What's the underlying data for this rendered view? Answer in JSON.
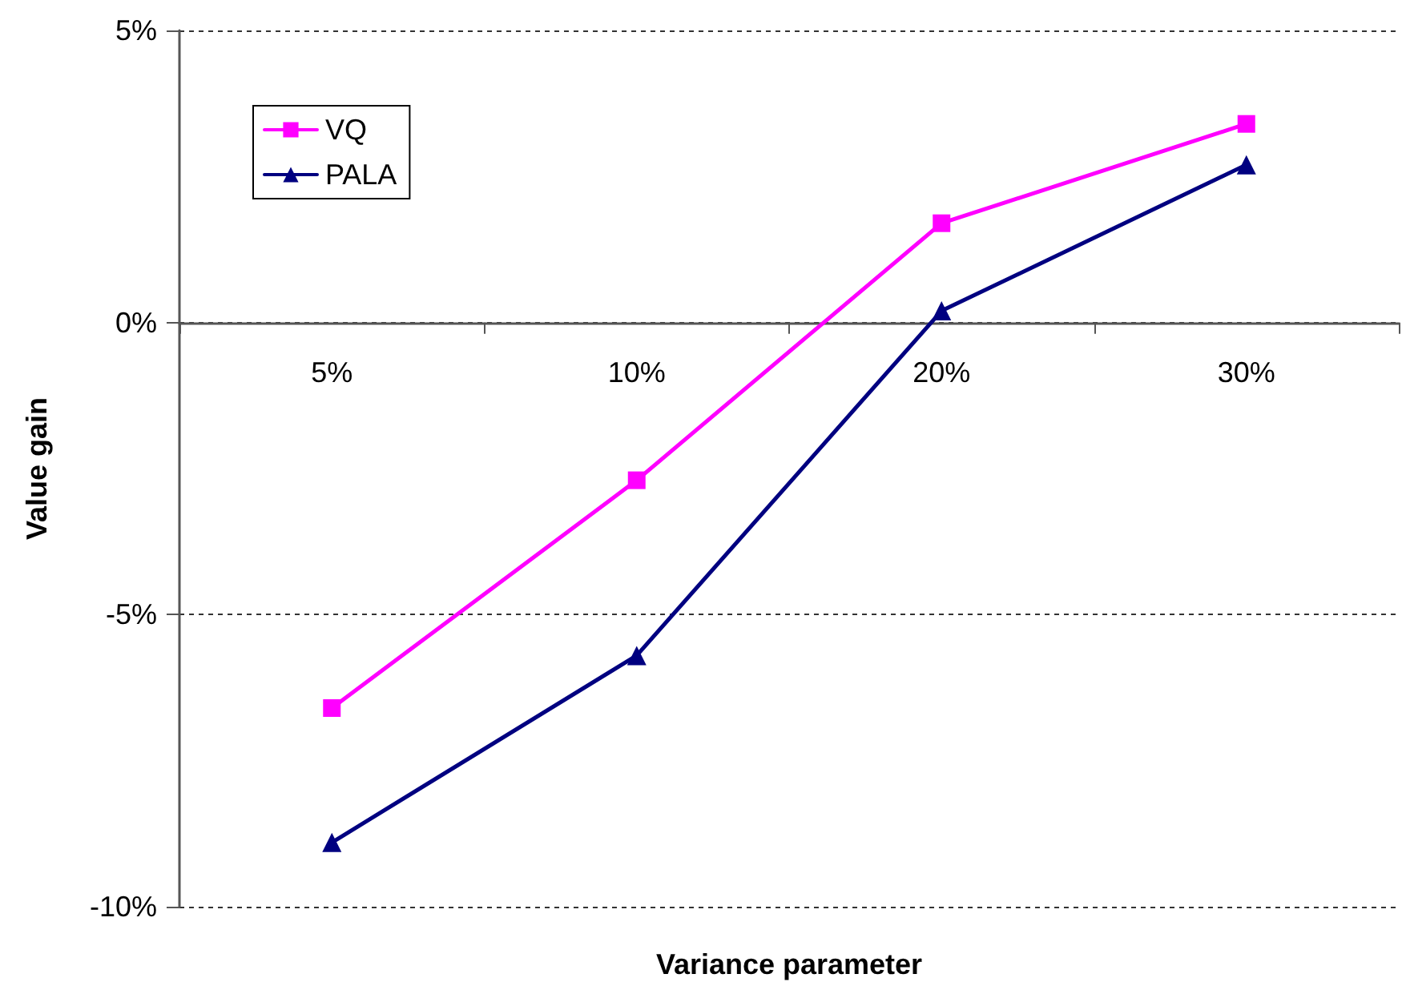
{
  "chart_data": {
    "type": "line",
    "xlabel": "Variance parameter",
    "ylabel": "Value gain",
    "categories": [
      "5%",
      "10%",
      "20%",
      "30%"
    ],
    "series": [
      {
        "name": "VQ",
        "color": "#ff00ff",
        "marker": "square",
        "values": [
          -6.6,
          -2.7,
          1.7,
          3.4
        ]
      },
      {
        "name": "PALA",
        "color": "#000080",
        "marker": "triangle",
        "values": [
          -8.9,
          -5.7,
          0.2,
          2.7
        ]
      }
    ],
    "ylim": [
      -10,
      5
    ],
    "yticks": [
      {
        "value": -10,
        "label": "-10%"
      },
      {
        "value": -5,
        "label": "-5%"
      },
      {
        "value": 0,
        "label": "0%"
      },
      {
        "value": 5,
        "label": "5%"
      }
    ],
    "grid": "y",
    "legend": "top left",
    "line_style": "solid"
  }
}
